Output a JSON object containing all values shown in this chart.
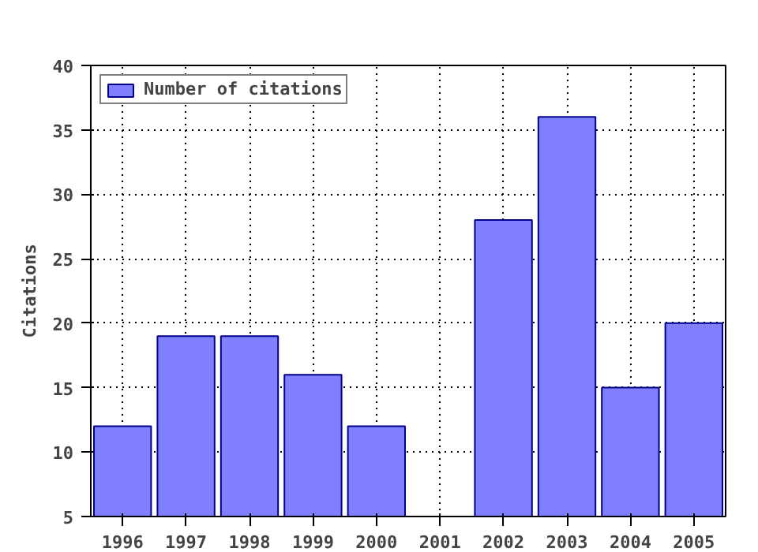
{
  "chart_data": {
    "type": "bar",
    "ylabel": "Citations",
    "x": [
      1996,
      1997,
      1998,
      1999,
      2000,
      2001,
      2002,
      2003,
      2004,
      2005
    ],
    "series": [
      {
        "name": "Number of citations",
        "color": "#8080ff",
        "values": [
          12,
          19,
          19,
          16,
          12,
          null,
          28,
          36,
          15,
          20
        ]
      }
    ],
    "xlim": [
      1995.5,
      2005.5
    ],
    "xticks": [
      1996,
      1997,
      1998,
      1999,
      2000,
      2001,
      2002,
      2003,
      2004,
      2005
    ],
    "ylim": [
      5,
      40
    ],
    "yticks": [
      5,
      10,
      15,
      20,
      25,
      30,
      35,
      40
    ],
    "grid": true,
    "legend": "top left"
  }
}
